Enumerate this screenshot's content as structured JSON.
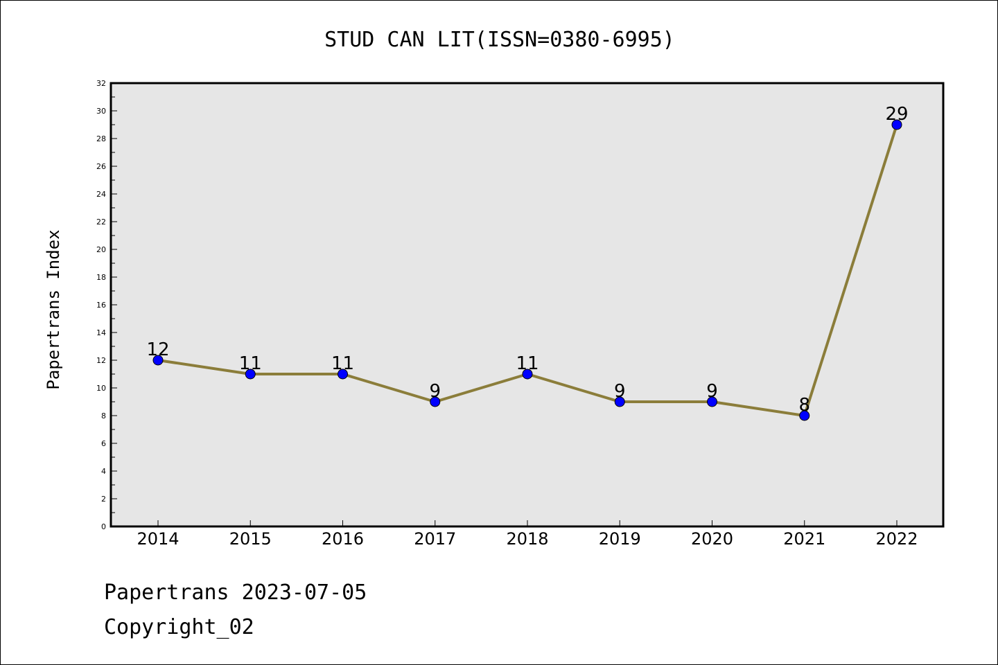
{
  "chart_data": {
    "type": "line",
    "title": "STUD CAN LIT(ISSN=0380-6995)",
    "xlabel": "",
    "ylabel": "Papertrans Index",
    "categories": [
      "2014",
      "2015",
      "2016",
      "2017",
      "2018",
      "2019",
      "2020",
      "2021",
      "2022"
    ],
    "series": [
      {
        "values": [
          12,
          11,
          11,
          9,
          11,
          9,
          9,
          8,
          29
        ]
      }
    ],
    "ylim": [
      0,
      32
    ],
    "yticks": [
      0,
      2,
      4,
      6,
      8,
      10,
      12,
      14,
      16,
      18,
      20,
      22,
      24,
      26,
      28,
      30,
      32
    ],
    "grid": false,
    "legend": "none",
    "colors": {
      "line": "#8B7D3A",
      "marker": "#0000FF",
      "plot_bg": "#E6E6E6"
    }
  },
  "footer": {
    "line1": "Papertrans 2023-07-05",
    "line2": "Copyright_02"
  }
}
